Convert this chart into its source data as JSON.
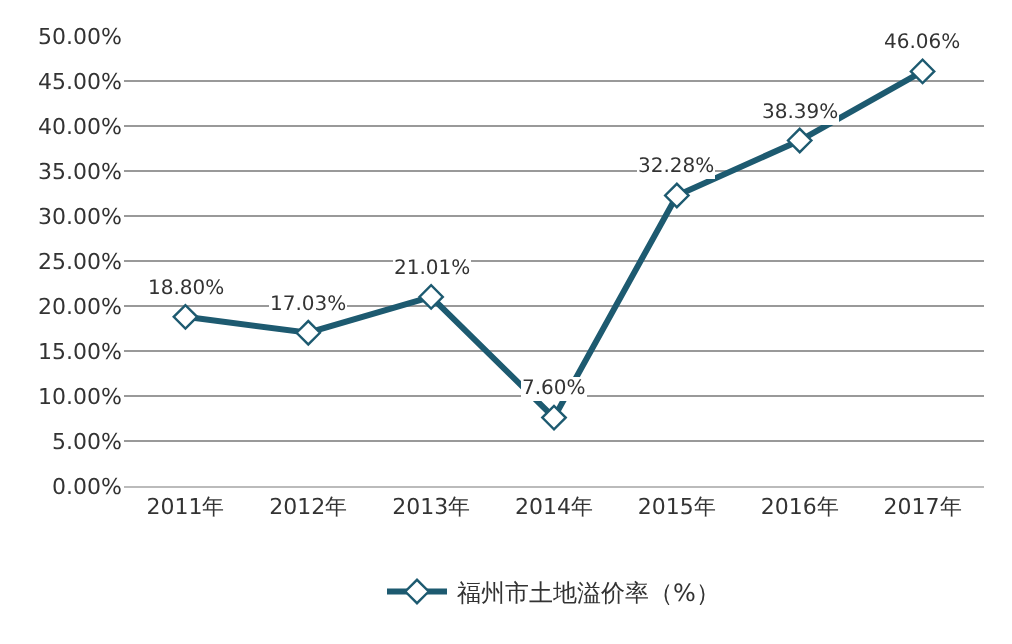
{
  "chart_data": {
    "type": "line",
    "categories": [
      "2011年",
      "2012年",
      "2013年",
      "2014年",
      "2015年",
      "2016年",
      "2017年"
    ],
    "series": [
      {
        "name": "福州市土地溢价率（%）",
        "color": "#1d5a70",
        "values": [
          18.8,
          17.03,
          21.01,
          7.6,
          32.28,
          38.39,
          46.06
        ],
        "value_labels": [
          "18.80%",
          "17.03%",
          "21.01%",
          "7.60%",
          "32.28%",
          "38.39%",
          "46.06%"
        ]
      }
    ],
    "ylim": [
      0,
      50
    ],
    "yticks": [
      {
        "value": 0,
        "label": "0.00%"
      },
      {
        "value": 5,
        "label": "5.00%"
      },
      {
        "value": 10,
        "label": "10.00%"
      },
      {
        "value": 15,
        "label": "15.00%"
      },
      {
        "value": 20,
        "label": "20.00%"
      },
      {
        "value": 25,
        "label": "25.00%"
      },
      {
        "value": 30,
        "label": "30.00%"
      },
      {
        "value": 35,
        "label": "35.00%"
      },
      {
        "value": 40,
        "label": "40.00%"
      },
      {
        "value": 45,
        "label": "45.00%"
      },
      {
        "value": 50,
        "label": "50.00%"
      }
    ],
    "grid": "y",
    "legend": "bottom",
    "marker": "diamond",
    "line_style": "solid"
  }
}
